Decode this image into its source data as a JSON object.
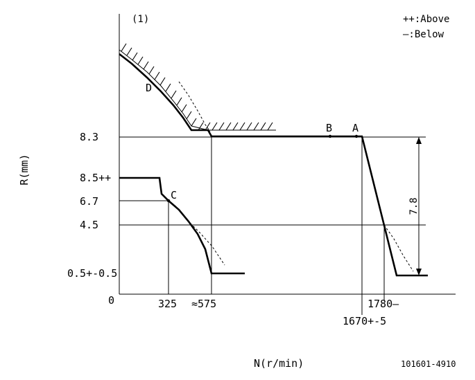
{
  "figure_number": "(1)",
  "legend": {
    "above": "++:Above",
    "below": "—:Below"
  },
  "axes": {
    "y_label": "R(mm)",
    "x_label": "N(r/min)",
    "zero": "0"
  },
  "y_ticks": {
    "r_8_3": "8.3",
    "r_8_5": "8.5++",
    "r_6_7": "6.7",
    "r_4_5": "4.5",
    "r_0_5": "0.5+-0.5"
  },
  "x_ticks": {
    "n_325": "325",
    "n_575": "≈575",
    "n_1780": "1780—",
    "n_1670": "1670+-5"
  },
  "points": {
    "a": "A",
    "b": "B",
    "c": "C",
    "d": "D"
  },
  "dimension": "7.8",
  "code": "101601-4910"
}
